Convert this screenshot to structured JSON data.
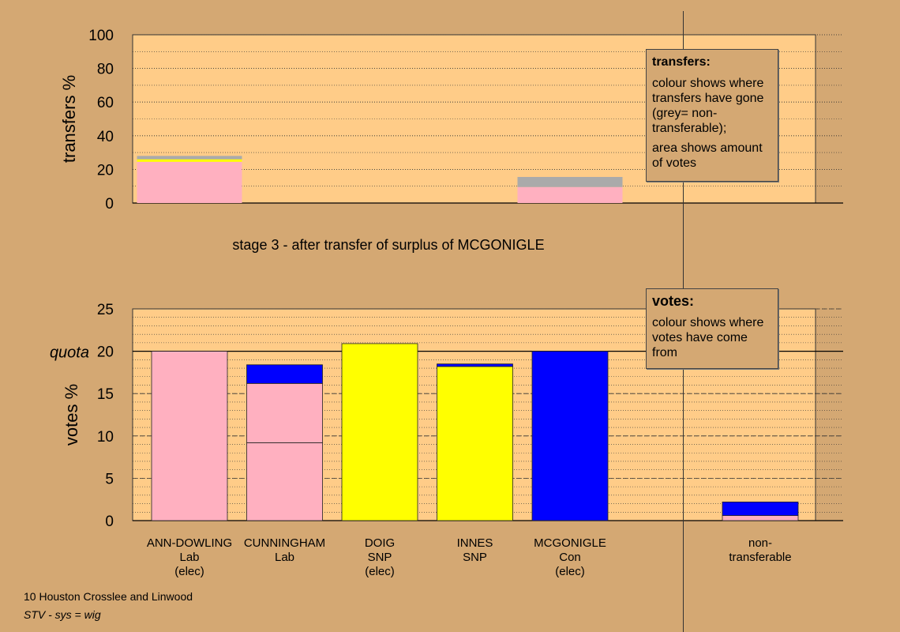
{
  "colors": {
    "background": "#D4A873",
    "plot_area": "#FFCC88",
    "Lab": "#FFB0C0",
    "SNP": "#FFFF00",
    "Con": "#0000FF",
    "non_transferable": "#AAAAAA"
  },
  "stage_caption": "stage 3 - after transfer of surplus of MCGONIGLE",
  "transfers_legend": {
    "title": "transfers:",
    "line1": "colour shows where transfers have gone (grey= non-transferable);",
    "line2": "area shows amount of votes"
  },
  "votes_legend": {
    "title": "votes:",
    "line1": "colour shows where votes have come from"
  },
  "footer": {
    "title": "10 Houston Crosslee and Linwood",
    "system": "STV - sys = wig"
  },
  "chart_data": [
    {
      "type": "bar",
      "name": "transfers",
      "ylabel": "transfers %",
      "ylim": [
        0,
        100
      ],
      "yticks": [
        0,
        20,
        40,
        60,
        80,
        100
      ],
      "grid": true,
      "columns": [
        {
          "candidate": "ANN-DOWLING",
          "segments": [
            {
              "party": "Lab",
              "value": 24.5
            },
            {
              "party": "SNP",
              "value": 1.5
            },
            {
              "party": "non_transferable",
              "value": 2.0
            }
          ]
        },
        {
          "candidate": "CUNNINGHAM",
          "segments": []
        },
        {
          "candidate": "DOIG",
          "segments": []
        },
        {
          "candidate": "INNES",
          "segments": []
        },
        {
          "candidate": "MCGONIGLE",
          "segments": [
            {
              "party": "Lab",
              "value": 9.5
            },
            {
              "party": "non_transferable",
              "value": 6.0
            }
          ]
        }
      ]
    },
    {
      "type": "bar",
      "name": "votes",
      "ylabel": "votes %",
      "ylim": [
        0,
        25
      ],
      "yticks": [
        0,
        5,
        10,
        15,
        20,
        25
      ],
      "quota": {
        "label": "quota",
        "value": 20
      },
      "grid": true,
      "categories": [
        [
          "ANN-DOWLING",
          "Lab",
          "(elec)"
        ],
        [
          "CUNNINGHAM",
          "Lab"
        ],
        [
          "DOIG",
          "SNP",
          "(elec)"
        ],
        [
          "INNES",
          "SNP"
        ],
        [
          "MCGONIGLE",
          "Con",
          "(elec)"
        ],
        [],
        [
          "non-",
          "transferable"
        ]
      ],
      "columns": [
        {
          "candidate": "ANN-DOWLING",
          "segments": [
            {
              "party": "Lab",
              "value": 20.0
            }
          ]
        },
        {
          "candidate": "CUNNINGHAM",
          "segments": [
            {
              "party": "Lab",
              "value": 9.2
            },
            {
              "party": "Lab",
              "value": 7.0
            },
            {
              "party": "Con",
              "value": 2.2
            }
          ]
        },
        {
          "candidate": "DOIG",
          "segments": [
            {
              "party": "SNP",
              "value": 20.9
            }
          ]
        },
        {
          "candidate": "INNES",
          "segments": [
            {
              "party": "SNP",
              "value": 18.2
            },
            {
              "party": "Con",
              "value": 0.3
            }
          ]
        },
        {
          "candidate": "MCGONIGLE",
          "segments": [
            {
              "party": "Con",
              "value": 20.0
            }
          ]
        },
        {
          "candidate": "",
          "segments": []
        },
        {
          "candidate": "non-transferable",
          "segments": [
            {
              "party": "Lab",
              "value": 0.6
            },
            {
              "party": "Con",
              "value": 1.6
            }
          ]
        }
      ]
    }
  ]
}
